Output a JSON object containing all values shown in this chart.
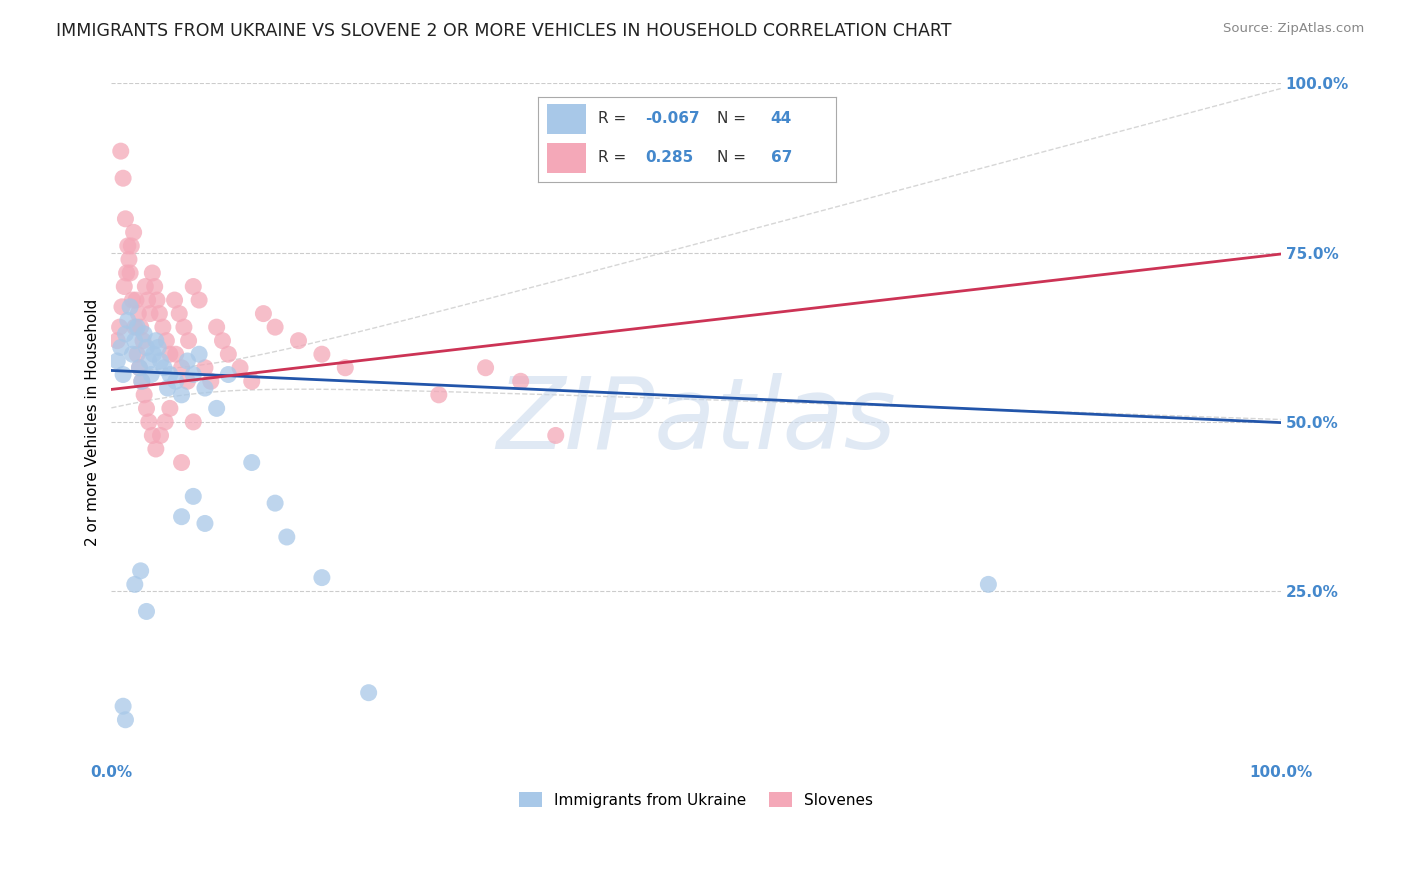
{
  "title": "IMMIGRANTS FROM UKRAINE VS SLOVENE 2 OR MORE VEHICLES IN HOUSEHOLD CORRELATION CHART",
  "source": "Source: ZipAtlas.com",
  "ylabel": "2 or more Vehicles in Household",
  "xlim": [
    0.0,
    1.0
  ],
  "ylim": [
    0.0,
    1.0
  ],
  "ytick_positions": [
    0.25,
    0.5,
    0.75,
    1.0
  ],
  "yticklabels": [
    "25.0%",
    "50.0%",
    "75.0%",
    "100.0%"
  ],
  "xtick_positions": [
    0.0,
    1.0
  ],
  "xticklabels": [
    "0.0%",
    "100.0%"
  ],
  "blue_R": -0.067,
  "blue_N": 44,
  "pink_R": 0.285,
  "pink_N": 67,
  "blue_color": "#a8c8e8",
  "pink_color": "#f4a8b8",
  "blue_line_color": "#2255aa",
  "pink_line_color": "#cc3355",
  "pink_dash_color": "#ccaabb",
  "watermark_text": "ZIPatlas",
  "watermark_color": "#c8d8ec",
  "background_color": "#ffffff",
  "grid_color": "#cccccc",
  "title_fontsize": 12.5,
  "tick_fontsize": 11,
  "tick_color": "#4488cc",
  "ylabel_fontsize": 11,
  "blue_x": [
    0.005,
    0.008,
    0.01,
    0.012,
    0.014,
    0.016,
    0.018,
    0.02,
    0.022,
    0.024,
    0.026,
    0.028,
    0.03,
    0.032,
    0.034,
    0.036,
    0.038,
    0.04,
    0.042,
    0.045,
    0.048,
    0.05,
    0.055,
    0.06,
    0.065,
    0.07,
    0.075,
    0.08,
    0.09,
    0.1,
    0.12,
    0.14,
    0.06,
    0.07,
    0.08,
    0.02,
    0.025,
    0.03,
    0.15,
    0.18,
    0.01,
    0.012,
    0.75,
    0.22
  ],
  "blue_y": [
    0.59,
    0.61,
    0.57,
    0.63,
    0.65,
    0.67,
    0.6,
    0.62,
    0.64,
    0.58,
    0.56,
    0.63,
    0.61,
    0.59,
    0.57,
    0.6,
    0.62,
    0.61,
    0.59,
    0.58,
    0.55,
    0.57,
    0.56,
    0.54,
    0.59,
    0.57,
    0.6,
    0.55,
    0.52,
    0.57,
    0.44,
    0.38,
    0.36,
    0.39,
    0.35,
    0.26,
    0.28,
    0.22,
    0.33,
    0.27,
    0.08,
    0.06,
    0.26,
    0.1
  ],
  "pink_x": [
    0.005,
    0.007,
    0.009,
    0.011,
    0.013,
    0.015,
    0.017,
    0.019,
    0.021,
    0.023,
    0.025,
    0.027,
    0.029,
    0.031,
    0.033,
    0.035,
    0.037,
    0.039,
    0.041,
    0.044,
    0.047,
    0.05,
    0.054,
    0.058,
    0.062,
    0.066,
    0.07,
    0.075,
    0.08,
    0.085,
    0.09,
    0.095,
    0.1,
    0.11,
    0.12,
    0.13,
    0.14,
    0.16,
    0.18,
    0.2,
    0.008,
    0.01,
    0.012,
    0.014,
    0.016,
    0.018,
    0.02,
    0.022,
    0.024,
    0.026,
    0.028,
    0.03,
    0.032,
    0.035,
    0.038,
    0.042,
    0.046,
    0.05,
    0.055,
    0.06,
    0.065,
    0.28,
    0.32,
    0.35,
    0.38,
    0.06,
    0.07
  ],
  "pink_y": [
    0.62,
    0.64,
    0.67,
    0.7,
    0.72,
    0.74,
    0.76,
    0.78,
    0.68,
    0.66,
    0.64,
    0.62,
    0.7,
    0.68,
    0.66,
    0.72,
    0.7,
    0.68,
    0.66,
    0.64,
    0.62,
    0.6,
    0.68,
    0.66,
    0.64,
    0.62,
    0.7,
    0.68,
    0.58,
    0.56,
    0.64,
    0.62,
    0.6,
    0.58,
    0.56,
    0.66,
    0.64,
    0.62,
    0.6,
    0.58,
    0.9,
    0.86,
    0.8,
    0.76,
    0.72,
    0.68,
    0.64,
    0.6,
    0.58,
    0.56,
    0.54,
    0.52,
    0.5,
    0.48,
    0.46,
    0.48,
    0.5,
    0.52,
    0.6,
    0.58,
    0.56,
    0.54,
    0.58,
    0.56,
    0.48,
    0.44,
    0.5
  ],
  "blue_line_start_y": 0.576,
  "blue_line_end_y": 0.499,
  "pink_line_start_y": 0.548,
  "pink_line_end_y": 0.748
}
